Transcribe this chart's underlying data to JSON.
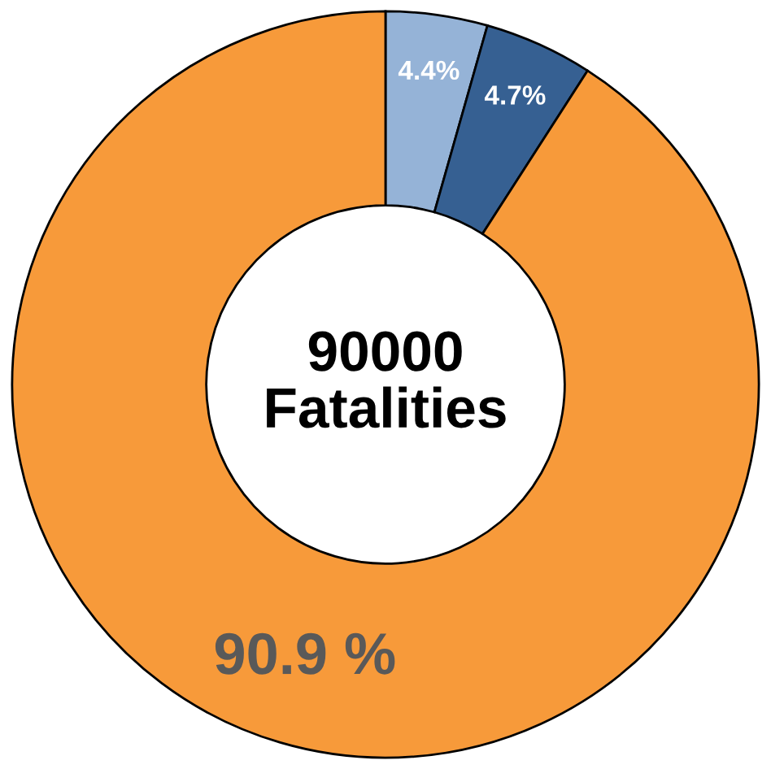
{
  "chart_data": {
    "type": "donut",
    "categories": [
      null,
      null,
      null
    ],
    "values": [
      4.4,
      4.7,
      90.9
    ],
    "colors": [
      "#95b3d7",
      "#366092",
      "#f79a3a"
    ],
    "value_labels": [
      "4.4%",
      "4.7%",
      "90.9 %"
    ],
    "annotations": [
      "90000\nFatalities"
    ]
  }
}
